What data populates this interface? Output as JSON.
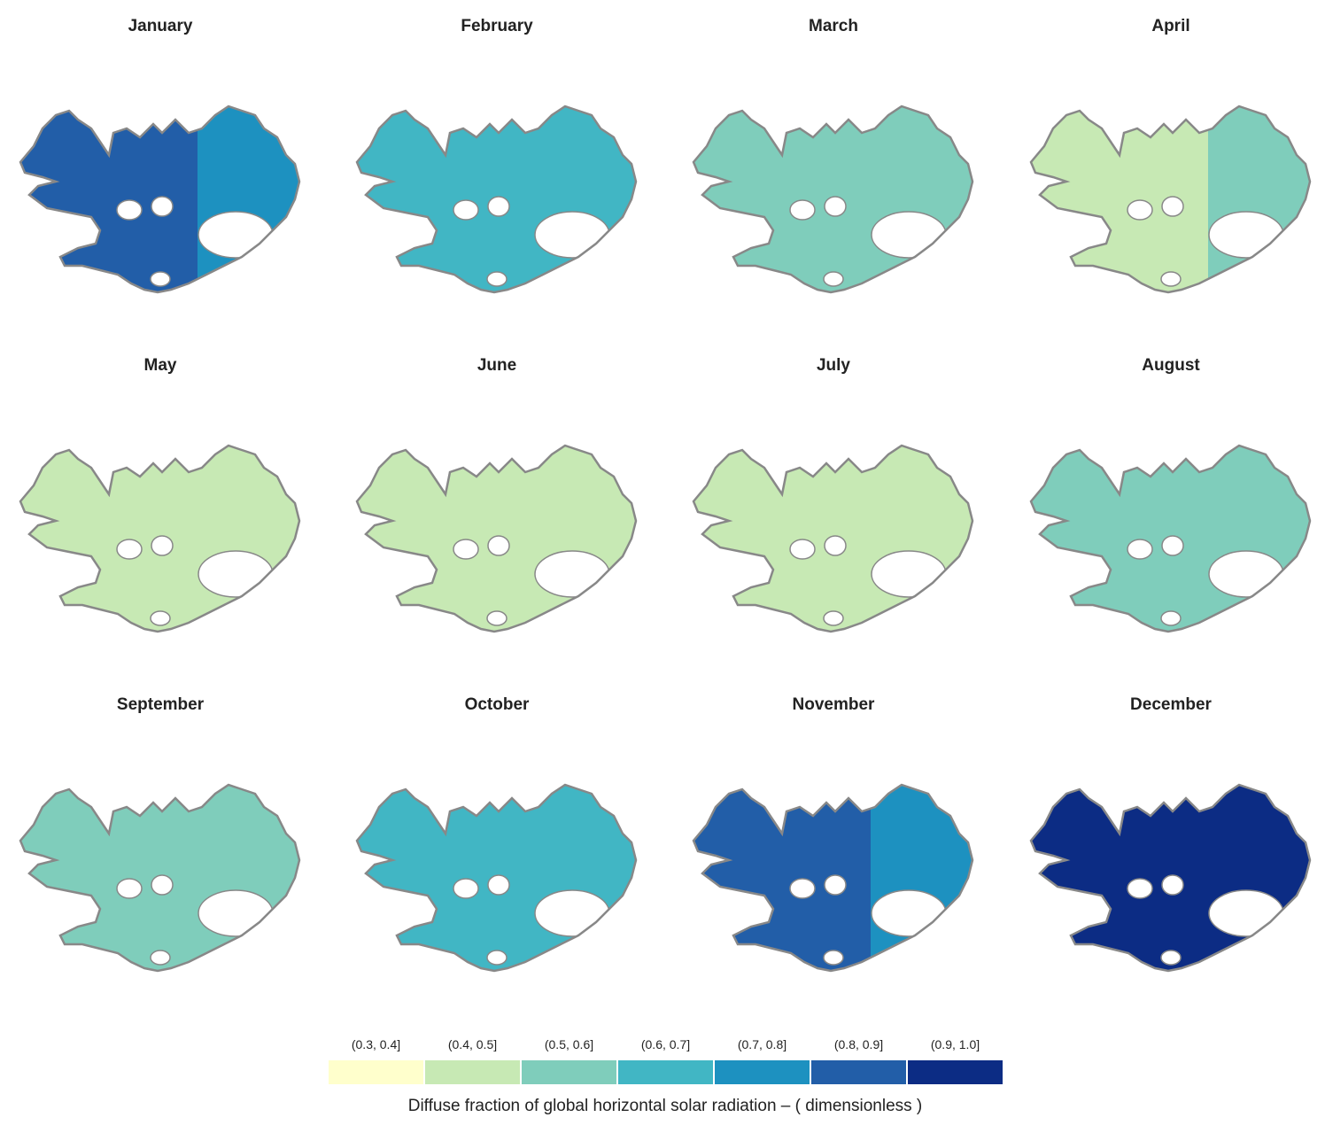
{
  "panels": [
    {
      "title": "January",
      "west": 5,
      "east": 4
    },
    {
      "title": "February",
      "west": 3,
      "east": 3
    },
    {
      "title": "March",
      "west": 2,
      "east": 2
    },
    {
      "title": "April",
      "west": 1,
      "east": 2
    },
    {
      "title": "May",
      "west": 1,
      "east": 1
    },
    {
      "title": "June",
      "west": 1,
      "east": 1
    },
    {
      "title": "July",
      "west": 1,
      "east": 1
    },
    {
      "title": "August",
      "west": 2,
      "east": 2
    },
    {
      "title": "September",
      "west": 2,
      "east": 2
    },
    {
      "title": "October",
      "west": 3,
      "east": 3
    },
    {
      "title": "November",
      "west": 5,
      "east": 4
    },
    {
      "title": "December",
      "west": 6,
      "east": 6
    }
  ],
  "legend": {
    "labels": [
      "(0.3, 0.4]",
      "(0.4, 0.5]",
      "(0.5, 0.6]",
      "(0.6, 0.7]",
      "(0.7, 0.8]",
      "(0.8, 0.9]",
      "(0.9, 1.0]"
    ],
    "colors": [
      "#ffffcc",
      "#c7e9b4",
      "#7fcdbb",
      "#41b6c4",
      "#1d91c0",
      "#225ea8",
      "#0c2c84"
    ],
    "title": "Diffuse fraction of global horizontal solar radiation – ( dimensionless )"
  }
}
